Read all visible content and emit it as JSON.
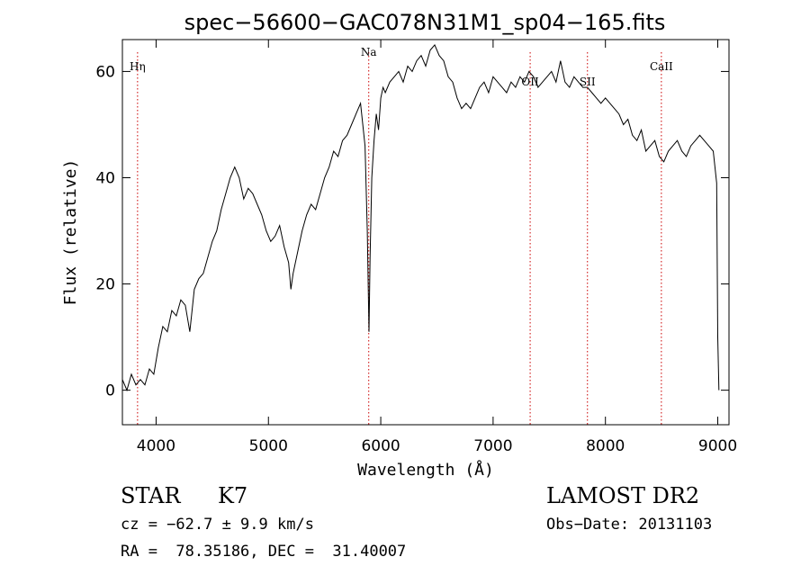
{
  "chart_data": {
    "type": "line",
    "title": "spec−56600−GAC078N31M1_sp04−165.fits",
    "xlabel": "Wavelength (Å)",
    "ylabel": "Flux (relative)",
    "xlim": [
      3700,
      9100
    ],
    "ylim": [
      -6.5,
      66
    ],
    "xticks": [
      4000,
      5000,
      6000,
      7000,
      8000,
      9000
    ],
    "yticks": [
      0,
      20,
      40,
      60
    ],
    "grid": false,
    "line_color": "#000000",
    "marker_color": "#cc0000",
    "series": [
      {
        "x": [
          3700,
          3740,
          3780,
          3820,
          3860,
          3900,
          3940,
          3980,
          4020,
          4060,
          4100,
          4140,
          4180,
          4220,
          4260,
          4300,
          4340,
          4380,
          4420,
          4460,
          4500,
          4540,
          4580,
          4620,
          4660,
          4700,
          4740,
          4780,
          4820,
          4860,
          4900,
          4940,
          4980,
          5020,
          5060,
          5100,
          5140,
          5180,
          5200,
          5220,
          5260,
          5300,
          5340,
          5380,
          5420,
          5460,
          5500,
          5540,
          5580,
          5620,
          5660,
          5700,
          5740,
          5780,
          5820,
          5860,
          5880,
          5895,
          5905,
          5920,
          5940,
          5960,
          5980,
          6000,
          6020,
          6040,
          6080,
          6120,
          6160,
          6200,
          6240,
          6280,
          6320,
          6360,
          6400,
          6440,
          6480,
          6520,
          6560,
          6600,
          6640,
          6680,
          6720,
          6760,
          6800,
          6840,
          6880,
          6920,
          6960,
          7000,
          7040,
          7080,
          7120,
          7160,
          7200,
          7240,
          7280,
          7320,
          7360,
          7400,
          7440,
          7480,
          7520,
          7560,
          7600,
          7640,
          7680,
          7720,
          7760,
          7800,
          7840,
          7880,
          7920,
          7960,
          8000,
          8040,
          8080,
          8120,
          8160,
          8200,
          8240,
          8280,
          8320,
          8360,
          8400,
          8440,
          8480,
          8520,
          8560,
          8600,
          8640,
          8680,
          8720,
          8760,
          8800,
          8840,
          8880,
          8920,
          8960,
          8990,
          9000,
          9010
        ],
        "y": [
          2,
          0,
          3,
          1,
          2,
          1,
          4,
          3,
          8,
          12,
          11,
          15,
          14,
          17,
          16,
          11,
          19,
          21,
          22,
          25,
          28,
          30,
          34,
          37,
          40,
          42,
          40,
          36,
          38,
          37,
          35,
          33,
          30,
          28,
          29,
          31,
          27,
          24,
          19,
          22,
          26,
          30,
          33,
          35,
          34,
          37,
          40,
          42,
          45,
          44,
          47,
          48,
          50,
          52,
          54,
          46,
          30,
          11,
          25,
          40,
          47,
          52,
          49,
          55,
          57,
          56,
          58,
          59,
          60,
          58,
          61,
          60,
          62,
          63,
          61,
          64,
          65,
          63,
          62,
          59,
          58,
          55,
          53,
          54,
          53,
          55,
          57,
          58,
          56,
          59,
          58,
          57,
          56,
          58,
          57,
          59,
          58,
          60,
          59,
          57,
          58,
          59,
          60,
          58,
          62,
          58,
          57,
          59,
          58,
          57,
          57,
          56,
          55,
          54,
          55,
          54,
          53,
          52,
          50,
          51,
          48,
          47,
          49,
          45,
          46,
          47,
          44,
          43,
          45,
          46,
          47,
          45,
          44,
          46,
          47,
          48,
          47,
          46,
          45,
          39,
          10,
          0
        ]
      }
    ],
    "line_markers": [
      {
        "label": "Hη",
        "x": 3835
      },
      {
        "label": "Na",
        "x": 5893
      },
      {
        "label": "OII",
        "x": 7330
      },
      {
        "label": "SII",
        "x": 7840
      },
      {
        "label": "CaII",
        "x": 8498
      }
    ]
  },
  "info": {
    "class": "STAR",
    "subclass": "K7",
    "survey": "LAMOST DR2",
    "cz_line": "cz = −62.7 ± 9.9 km/s",
    "obs_date": "Obs−Date: 20131103",
    "coords": "RA =  78.35186, DEC =  31.40007"
  }
}
